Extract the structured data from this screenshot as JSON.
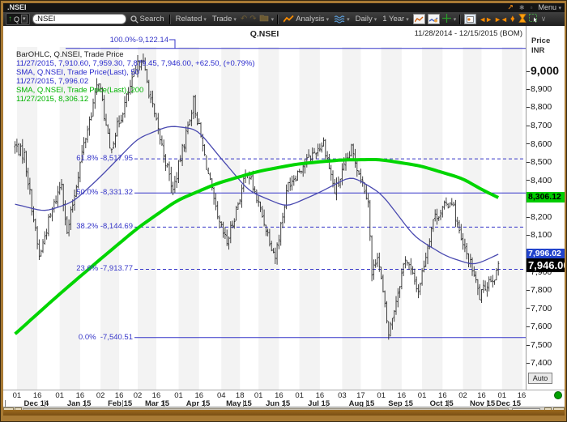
{
  "window": {
    "title": ".NSEI",
    "menu_label": "Menu"
  },
  "toolbar": {
    "symbol_prefix": "Q",
    "symbol_input": ".NSEI",
    "search_label": "Search",
    "related_label": "Related",
    "trade_label": "Trade",
    "analysis_label": "Analysis",
    "interval_label": "Daily",
    "range_label": "1 Year"
  },
  "chart_header": {
    "title": "Q.NSEI",
    "date_range": "11/28/2014 - 12/15/2015 (BOM)"
  },
  "axis": {
    "price_label": "Price",
    "currency_label": "INR",
    "auto_label": "Auto",
    "y_ticks": [
      "9,000",
      "8,900",
      "8,800",
      "8,700",
      "8,600",
      "8,500",
      "8,400",
      "8,200",
      "8,100",
      "7,900",
      "7,800",
      "7,700",
      "7,600",
      "7,500",
      "7,400"
    ]
  },
  "price_markers": {
    "sma200": {
      "text": "8,306.12",
      "color": "#00cc00"
    },
    "sma50": {
      "text": "7,996.02",
      "color": "#2244cc"
    },
    "last": {
      "text": "7,946.00",
      "color": "#000000"
    }
  },
  "legend": {
    "lines": [
      {
        "text": "BarOHLC, Q.NSEI, Trade Price",
        "color": "#222222"
      },
      {
        "text": "11/27/2015, 7,910.60, 7,959.30, 7,879.45, 7,946.00, +62.50, (+0.79%)",
        "color": "#2929cc"
      },
      {
        "text": "SMA, Q.NSEI, Trade Price(Last), 50",
        "color": "#2929cc"
      },
      {
        "text": "11/27/2015, 7,996.02",
        "color": "#2929cc"
      },
      {
        "text": "SMA, Q.NSEI, Trade Price(Last), 200",
        "color": "#00b400"
      },
      {
        "text": "11/27/2015, 8,306.12",
        "color": "#00b400"
      }
    ]
  },
  "chart_data": {
    "type": "ohlc",
    "title": "Q.NSEI",
    "currency": "INR",
    "x_range": [
      "2014-11-26",
      "2015-12-16"
    ],
    "ylim": [
      7300,
      9130
    ],
    "bars_count": 259,
    "last_bar": {
      "date": "11/27/2015",
      "open": 7910.6,
      "high": 7959.3,
      "low": 7879.45,
      "close": 7946.0,
      "net_change": "+62.50",
      "pct_change": "+0.79%"
    },
    "fib_levels": [
      {
        "label": "100.0%-9,122.14",
        "price": 9122.14,
        "dashed": false,
        "label_above": true
      },
      {
        "label": "61.8% -8,517.95",
        "price": 8517.95,
        "dashed": true,
        "label_above": false
      },
      {
        "label": "50.0% -8,331.32",
        "price": 8331.32,
        "dashed": false,
        "label_above": false
      },
      {
        "label": "38.2% -8,144.69",
        "price": 8144.69,
        "dashed": true,
        "label_above": false
      },
      {
        "label": "23.6% -7,913.77",
        "price": 7913.77,
        "dashed": true,
        "label_above": false
      },
      {
        "label": "0.0%  -7,540.51",
        "price": 7540.51,
        "dashed": false,
        "label_above": false
      }
    ],
    "close_keypoints": [
      [
        "2014-11-28",
        8588
      ],
      [
        "2014-12-05",
        8538
      ],
      [
        "2014-12-17",
        7980
      ],
      [
        "2014-12-24",
        8174
      ],
      [
        "2015-01-02",
        8395
      ],
      [
        "2015-01-07",
        8102
      ],
      [
        "2015-01-19",
        8550
      ],
      [
        "2015-01-30",
        8952
      ],
      [
        "2015-02-09",
        8565
      ],
      [
        "2015-02-20",
        8850
      ],
      [
        "2015-03-04",
        9080
      ],
      [
        "2015-03-13",
        8750
      ],
      [
        "2015-03-27",
        8342
      ],
      [
        "2015-04-13",
        8834
      ],
      [
        "2015-04-30",
        8182
      ],
      [
        "2015-05-07",
        8057
      ],
      [
        "2015-05-22",
        8459
      ],
      [
        "2015-06-02",
        8236
      ],
      [
        "2015-06-12",
        7983
      ],
      [
        "2015-06-23",
        8382
      ],
      [
        "2015-07-03",
        8485
      ],
      [
        "2015-07-20",
        8610
      ],
      [
        "2015-07-28",
        8337
      ],
      [
        "2015-08-10",
        8568
      ],
      [
        "2015-08-21",
        8299
      ],
      [
        "2015-08-25",
        7880
      ],
      [
        "2015-08-28",
        8002
      ],
      [
        "2015-09-07",
        7558
      ],
      [
        "2015-09-18",
        7982
      ],
      [
        "2015-09-29",
        7795
      ],
      [
        "2015-10-09",
        8190
      ],
      [
        "2015-10-23",
        8295
      ],
      [
        "2015-10-30",
        8066
      ],
      [
        "2015-11-09",
        7916
      ],
      [
        "2015-11-13",
        7762
      ],
      [
        "2015-11-20",
        7857
      ],
      [
        "2015-11-26",
        7884
      ],
      [
        "2015-11-27",
        7946
      ]
    ],
    "sma50": {
      "name": "SMA 50",
      "last_value": 7996.02,
      "color": "#4949b0",
      "keypoints": [
        [
          "2014-11-28",
          8270
        ],
        [
          "2014-12-20",
          8230
        ],
        [
          "2015-01-10",
          8280
        ],
        [
          "2015-02-01",
          8420
        ],
        [
          "2015-03-01",
          8630
        ],
        [
          "2015-03-25",
          8700
        ],
        [
          "2015-04-15",
          8680
        ],
        [
          "2015-05-01",
          8530
        ],
        [
          "2015-05-25",
          8340
        ],
        [
          "2015-06-20",
          8255
        ],
        [
          "2015-07-15",
          8330
        ],
        [
          "2015-08-10",
          8425
        ],
        [
          "2015-09-01",
          8330
        ],
        [
          "2015-09-25",
          8090
        ],
        [
          "2015-10-20",
          7985
        ],
        [
          "2015-11-10",
          7935
        ],
        [
          "2015-11-27",
          7996
        ]
      ]
    },
    "sma200": {
      "name": "SMA 200",
      "last_value": 8306.12,
      "color": "#00d500",
      "keypoints": [
        [
          "2014-11-28",
          7560
        ],
        [
          "2014-12-31",
          7770
        ],
        [
          "2015-01-31",
          7970
        ],
        [
          "2015-02-28",
          8140
        ],
        [
          "2015-03-31",
          8290
        ],
        [
          "2015-04-30",
          8385
        ],
        [
          "2015-05-31",
          8450
        ],
        [
          "2015-06-30",
          8490
        ],
        [
          "2015-07-31",
          8512
        ],
        [
          "2015-08-31",
          8515
        ],
        [
          "2015-09-30",
          8480
        ],
        [
          "2015-10-31",
          8410
        ],
        [
          "2015-11-15",
          8350
        ],
        [
          "2015-11-27",
          8306.12
        ]
      ]
    }
  },
  "xaxis": {
    "day_ticks": [
      {
        "label": "01",
        "date": "2014-12-01"
      },
      {
        "label": "16",
        "date": "2014-12-16"
      },
      {
        "label": "01",
        "date": "2015-01-01"
      },
      {
        "label": "16",
        "date": "2015-01-16"
      },
      {
        "label": "02",
        "date": "2015-02-02"
      },
      {
        "label": "16",
        "date": "2015-02-16"
      },
      {
        "label": "02",
        "date": "2015-03-02"
      },
      {
        "label": "16",
        "date": "2015-03-16"
      },
      {
        "label": "01",
        "date": "2015-04-01"
      },
      {
        "label": "16",
        "date": "2015-04-16"
      },
      {
        "label": "04",
        "date": "2015-05-04"
      },
      {
        "label": "18",
        "date": "2015-05-18"
      },
      {
        "label": "01",
        "date": "2015-06-01"
      },
      {
        "label": "16",
        "date": "2015-06-16"
      },
      {
        "label": "01",
        "date": "2015-07-01"
      },
      {
        "label": "16",
        "date": "2015-07-16"
      },
      {
        "label": "03",
        "date": "2015-08-03"
      },
      {
        "label": "17",
        "date": "2015-08-17"
      },
      {
        "label": "01",
        "date": "2015-09-01"
      },
      {
        "label": "16",
        "date": "2015-09-16"
      },
      {
        "label": "01",
        "date": "2015-10-01"
      },
      {
        "label": "16",
        "date": "2015-10-16"
      },
      {
        "label": "02",
        "date": "2015-11-02"
      },
      {
        "label": "16",
        "date": "2015-11-16"
      },
      {
        "label": "01",
        "date": "2015-12-01"
      },
      {
        "label": "16",
        "date": "2015-12-16"
      }
    ],
    "months": [
      {
        "label": "Dec 14",
        "start": "2014-12-01"
      },
      {
        "label": "Jan 15",
        "start": "2015-01-01"
      },
      {
        "label": "Feb 15",
        "start": "2015-02-02"
      },
      {
        "label": "Mar 15",
        "start": "2015-03-02"
      },
      {
        "label": "Apr 15",
        "start": "2015-04-01"
      },
      {
        "label": "May 15",
        "start": "2015-05-01"
      },
      {
        "label": "Jun 15",
        "start": "2015-06-01"
      },
      {
        "label": "Jul 15",
        "start": "2015-07-01"
      },
      {
        "label": "Aug 15",
        "start": "2015-08-03"
      },
      {
        "label": "Sep 15",
        "start": "2015-09-01"
      },
      {
        "label": "Oct 15",
        "start": "2015-10-01"
      },
      {
        "label": "Nov 15",
        "start": "2015-11-02"
      },
      {
        "label": "Dec 15",
        "start": "2015-12-01"
      }
    ]
  },
  "scrollbar": {
    "counter": "259 OP"
  }
}
